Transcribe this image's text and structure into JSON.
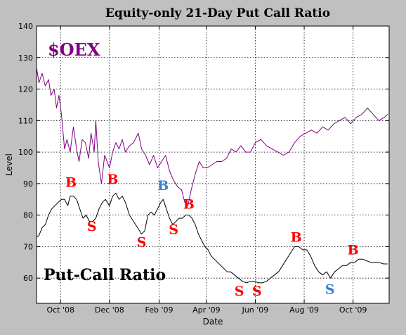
{
  "chart_data": {
    "type": "line",
    "title": "Equity-only 21-Day Put Call Ratio",
    "xlabel": "Date",
    "ylabel": "Level",
    "ylim": [
      52,
      140
    ],
    "xlim": [
      "2008-09-01",
      "2009-11-15"
    ],
    "y_ticks": [
      60,
      70,
      80,
      90,
      100,
      110,
      120,
      130,
      140
    ],
    "x_ticks": [
      {
        "date": "2008-10-01",
        "label": "Oct '08"
      },
      {
        "date": "2008-12-01",
        "label": "Dec '08"
      },
      {
        "date": "2009-02-01",
        "label": "Feb '09"
      },
      {
        "date": "2009-04-01",
        "label": "Apr '09"
      },
      {
        "date": "2009-06-01",
        "label": "Jun '09"
      },
      {
        "date": "2009-08-01",
        "label": "Aug '09"
      },
      {
        "date": "2009-10-01",
        "label": "Oct '09"
      }
    ],
    "grid": true,
    "series": [
      {
        "name": "$OEX",
        "color": "#800080",
        "points": [
          [
            "2008-09-01",
            127
          ],
          [
            "2008-09-04",
            122
          ],
          [
            "2008-09-08",
            125
          ],
          [
            "2008-09-12",
            121
          ],
          [
            "2008-09-16",
            123
          ],
          [
            "2008-09-19",
            118
          ],
          [
            "2008-09-23",
            120
          ],
          [
            "2008-09-26",
            114
          ],
          [
            "2008-09-29",
            118
          ],
          [
            "2008-10-02",
            112
          ],
          [
            "2008-10-06",
            101
          ],
          [
            "2008-10-09",
            104
          ],
          [
            "2008-10-13",
            100
          ],
          [
            "2008-10-17",
            108
          ],
          [
            "2008-10-21",
            101
          ],
          [
            "2008-10-24",
            97
          ],
          [
            "2008-10-28",
            104
          ],
          [
            "2008-11-01",
            103
          ],
          [
            "2008-11-05",
            98
          ],
          [
            "2008-11-08",
            106
          ],
          [
            "2008-11-12",
            100
          ],
          [
            "2008-11-14",
            110
          ],
          [
            "2008-11-17",
            97
          ],
          [
            "2008-11-21",
            90
          ],
          [
            "2008-11-25",
            99
          ],
          [
            "2008-12-01",
            95
          ],
          [
            "2008-12-05",
            100
          ],
          [
            "2008-12-09",
            103
          ],
          [
            "2008-12-13",
            101
          ],
          [
            "2008-12-17",
            104
          ],
          [
            "2008-12-21",
            100
          ],
          [
            "2008-12-26",
            102
          ],
          [
            "2008-12-31",
            103
          ],
          [
            "2009-01-06",
            106
          ],
          [
            "2009-01-10",
            101
          ],
          [
            "2009-01-15",
            99
          ],
          [
            "2009-01-20",
            96
          ],
          [
            "2009-01-25",
            99
          ],
          [
            "2009-01-30",
            95
          ],
          [
            "2009-02-04",
            97
          ],
          [
            "2009-02-09",
            99
          ],
          [
            "2009-02-14",
            94
          ],
          [
            "2009-02-19",
            91
          ],
          [
            "2009-02-24",
            89
          ],
          [
            "2009-03-01",
            88
          ],
          [
            "2009-03-05",
            84
          ],
          [
            "2009-03-09",
            83
          ],
          [
            "2009-03-13",
            88
          ],
          [
            "2009-03-18",
            93
          ],
          [
            "2009-03-23",
            97
          ],
          [
            "2009-03-28",
            95
          ],
          [
            "2009-04-02",
            95
          ],
          [
            "2009-04-08",
            96
          ],
          [
            "2009-04-14",
            97
          ],
          [
            "2009-04-20",
            97
          ],
          [
            "2009-04-26",
            98
          ],
          [
            "2009-05-02",
            101
          ],
          [
            "2009-05-08",
            100
          ],
          [
            "2009-05-14",
            102
          ],
          [
            "2009-05-20",
            100
          ],
          [
            "2009-05-26",
            100
          ],
          [
            "2009-06-01",
            103
          ],
          [
            "2009-06-08",
            104
          ],
          [
            "2009-06-15",
            102
          ],
          [
            "2009-06-22",
            101
          ],
          [
            "2009-06-29",
            100
          ],
          [
            "2009-07-06",
            99
          ],
          [
            "2009-07-13",
            100
          ],
          [
            "2009-07-20",
            103
          ],
          [
            "2009-07-27",
            105
          ],
          [
            "2009-08-03",
            106
          ],
          [
            "2009-08-10",
            107
          ],
          [
            "2009-08-17",
            106
          ],
          [
            "2009-08-24",
            108
          ],
          [
            "2009-08-31",
            107
          ],
          [
            "2009-09-07",
            109
          ],
          [
            "2009-09-14",
            110
          ],
          [
            "2009-09-21",
            111
          ],
          [
            "2009-09-28",
            109
          ],
          [
            "2009-10-05",
            111
          ],
          [
            "2009-10-12",
            112
          ],
          [
            "2009-10-19",
            114
          ],
          [
            "2009-10-26",
            112
          ],
          [
            "2009-11-02",
            110
          ],
          [
            "2009-11-09",
            111
          ],
          [
            "2009-11-13",
            112
          ]
        ]
      },
      {
        "name": "Put-Call Ratio",
        "color": "#000000",
        "points": [
          [
            "2008-09-01",
            73
          ],
          [
            "2008-09-04",
            73.5
          ],
          [
            "2008-09-08",
            76
          ],
          [
            "2008-09-12",
            77
          ],
          [
            "2008-09-16",
            80
          ],
          [
            "2008-09-20",
            82
          ],
          [
            "2008-09-24",
            83
          ],
          [
            "2008-09-28",
            84
          ],
          [
            "2008-10-02",
            85
          ],
          [
            "2008-10-06",
            85
          ],
          [
            "2008-10-10",
            83
          ],
          [
            "2008-10-13",
            86
          ],
          [
            "2008-10-17",
            86
          ],
          [
            "2008-10-21",
            85
          ],
          [
            "2008-10-25",
            82
          ],
          [
            "2008-10-29",
            79
          ],
          [
            "2008-11-02",
            80
          ],
          [
            "2008-11-06",
            78
          ],
          [
            "2008-11-10",
            78
          ],
          [
            "2008-11-14",
            79
          ],
          [
            "2008-11-18",
            82
          ],
          [
            "2008-11-22",
            84
          ],
          [
            "2008-11-26",
            85
          ],
          [
            "2008-12-01",
            83
          ],
          [
            "2008-12-05",
            86
          ],
          [
            "2008-12-09",
            87
          ],
          [
            "2008-12-13",
            85
          ],
          [
            "2008-12-17",
            86
          ],
          [
            "2008-12-21",
            84
          ],
          [
            "2008-12-26",
            80
          ],
          [
            "2008-12-31",
            78
          ],
          [
            "2009-01-05",
            76
          ],
          [
            "2009-01-10",
            74
          ],
          [
            "2009-01-14",
            75
          ],
          [
            "2009-01-18",
            80
          ],
          [
            "2009-01-22",
            81
          ],
          [
            "2009-01-26",
            80
          ],
          [
            "2009-01-30",
            82
          ],
          [
            "2009-02-03",
            84
          ],
          [
            "2009-02-06",
            85
          ],
          [
            "2009-02-10",
            82
          ],
          [
            "2009-02-14",
            79
          ],
          [
            "2009-02-18",
            77
          ],
          [
            "2009-02-22",
            78
          ],
          [
            "2009-02-26",
            79
          ],
          [
            "2009-03-02",
            79
          ],
          [
            "2009-03-06",
            80
          ],
          [
            "2009-03-10",
            80
          ],
          [
            "2009-03-14",
            79
          ],
          [
            "2009-03-18",
            77
          ],
          [
            "2009-03-22",
            74
          ],
          [
            "2009-03-26",
            72
          ],
          [
            "2009-03-30",
            70
          ],
          [
            "2009-04-03",
            69
          ],
          [
            "2009-04-07",
            67
          ],
          [
            "2009-04-11",
            66
          ],
          [
            "2009-04-15",
            65
          ],
          [
            "2009-04-19",
            64
          ],
          [
            "2009-04-23",
            63
          ],
          [
            "2009-04-27",
            62
          ],
          [
            "2009-05-01",
            62
          ],
          [
            "2009-05-06",
            61
          ],
          [
            "2009-05-11",
            60
          ],
          [
            "2009-05-16",
            59
          ],
          [
            "2009-05-21",
            58.5
          ],
          [
            "2009-05-26",
            59
          ],
          [
            "2009-05-31",
            59
          ],
          [
            "2009-06-05",
            58.5
          ],
          [
            "2009-06-10",
            58.5
          ],
          [
            "2009-06-15",
            59
          ],
          [
            "2009-06-20",
            60
          ],
          [
            "2009-06-25",
            61
          ],
          [
            "2009-06-30",
            62
          ],
          [
            "2009-07-05",
            64
          ],
          [
            "2009-07-10",
            66
          ],
          [
            "2009-07-15",
            68
          ],
          [
            "2009-07-20",
            70
          ],
          [
            "2009-07-25",
            70
          ],
          [
            "2009-07-30",
            69
          ],
          [
            "2009-08-04",
            69
          ],
          [
            "2009-08-09",
            67
          ],
          [
            "2009-08-14",
            64
          ],
          [
            "2009-08-19",
            62
          ],
          [
            "2009-08-24",
            61
          ],
          [
            "2009-08-29",
            62
          ],
          [
            "2009-09-03",
            60
          ],
          [
            "2009-09-08",
            62
          ],
          [
            "2009-09-13",
            63
          ],
          [
            "2009-09-18",
            64
          ],
          [
            "2009-09-23",
            64
          ],
          [
            "2009-09-28",
            65
          ],
          [
            "2009-10-03",
            65
          ],
          [
            "2009-10-08",
            66
          ],
          [
            "2009-10-13",
            66
          ],
          [
            "2009-10-18",
            65.5
          ],
          [
            "2009-10-23",
            65
          ],
          [
            "2009-10-28",
            65
          ],
          [
            "2009-11-02",
            65
          ],
          [
            "2009-11-08",
            64.5
          ],
          [
            "2009-11-13",
            64.5
          ]
        ]
      }
    ],
    "series_labels": [
      {
        "text": "$OEX",
        "color": "#800080"
      },
      {
        "text": "Put-Call Ratio",
        "color": "#000000"
      }
    ],
    "annotations": [
      {
        "text": "B",
        "color": "#ff0000",
        "date": "2008-10-14",
        "y": 89
      },
      {
        "text": "B",
        "color": "#ff0000",
        "date": "2008-12-05",
        "y": 90
      },
      {
        "text": "B",
        "color": "#3a7fd0",
        "date": "2009-02-06",
        "y": 88
      },
      {
        "text": "B",
        "color": "#ff0000",
        "date": "2009-03-10",
        "y": 82
      },
      {
        "text": "B",
        "color": "#ff0000",
        "date": "2009-07-22",
        "y": 71.5
      },
      {
        "text": "B",
        "color": "#ff0000",
        "date": "2009-10-01",
        "y": 67.5
      },
      {
        "text": "S",
        "color": "#ff0000",
        "date": "2008-11-09",
        "y": 75
      },
      {
        "text": "S",
        "color": "#ff0000",
        "date": "2009-01-10",
        "y": 70
      },
      {
        "text": "S",
        "color": "#ff0000",
        "date": "2009-02-19",
        "y": 74
      },
      {
        "text": "S",
        "color": "#ff0000",
        "date": "2009-05-12",
        "y": 54.5
      },
      {
        "text": "S",
        "color": "#ff0000",
        "date": "2009-06-03",
        "y": 54.5
      },
      {
        "text": "S",
        "color": "#3a7fd0",
        "date": "2009-09-02",
        "y": 55
      }
    ]
  }
}
